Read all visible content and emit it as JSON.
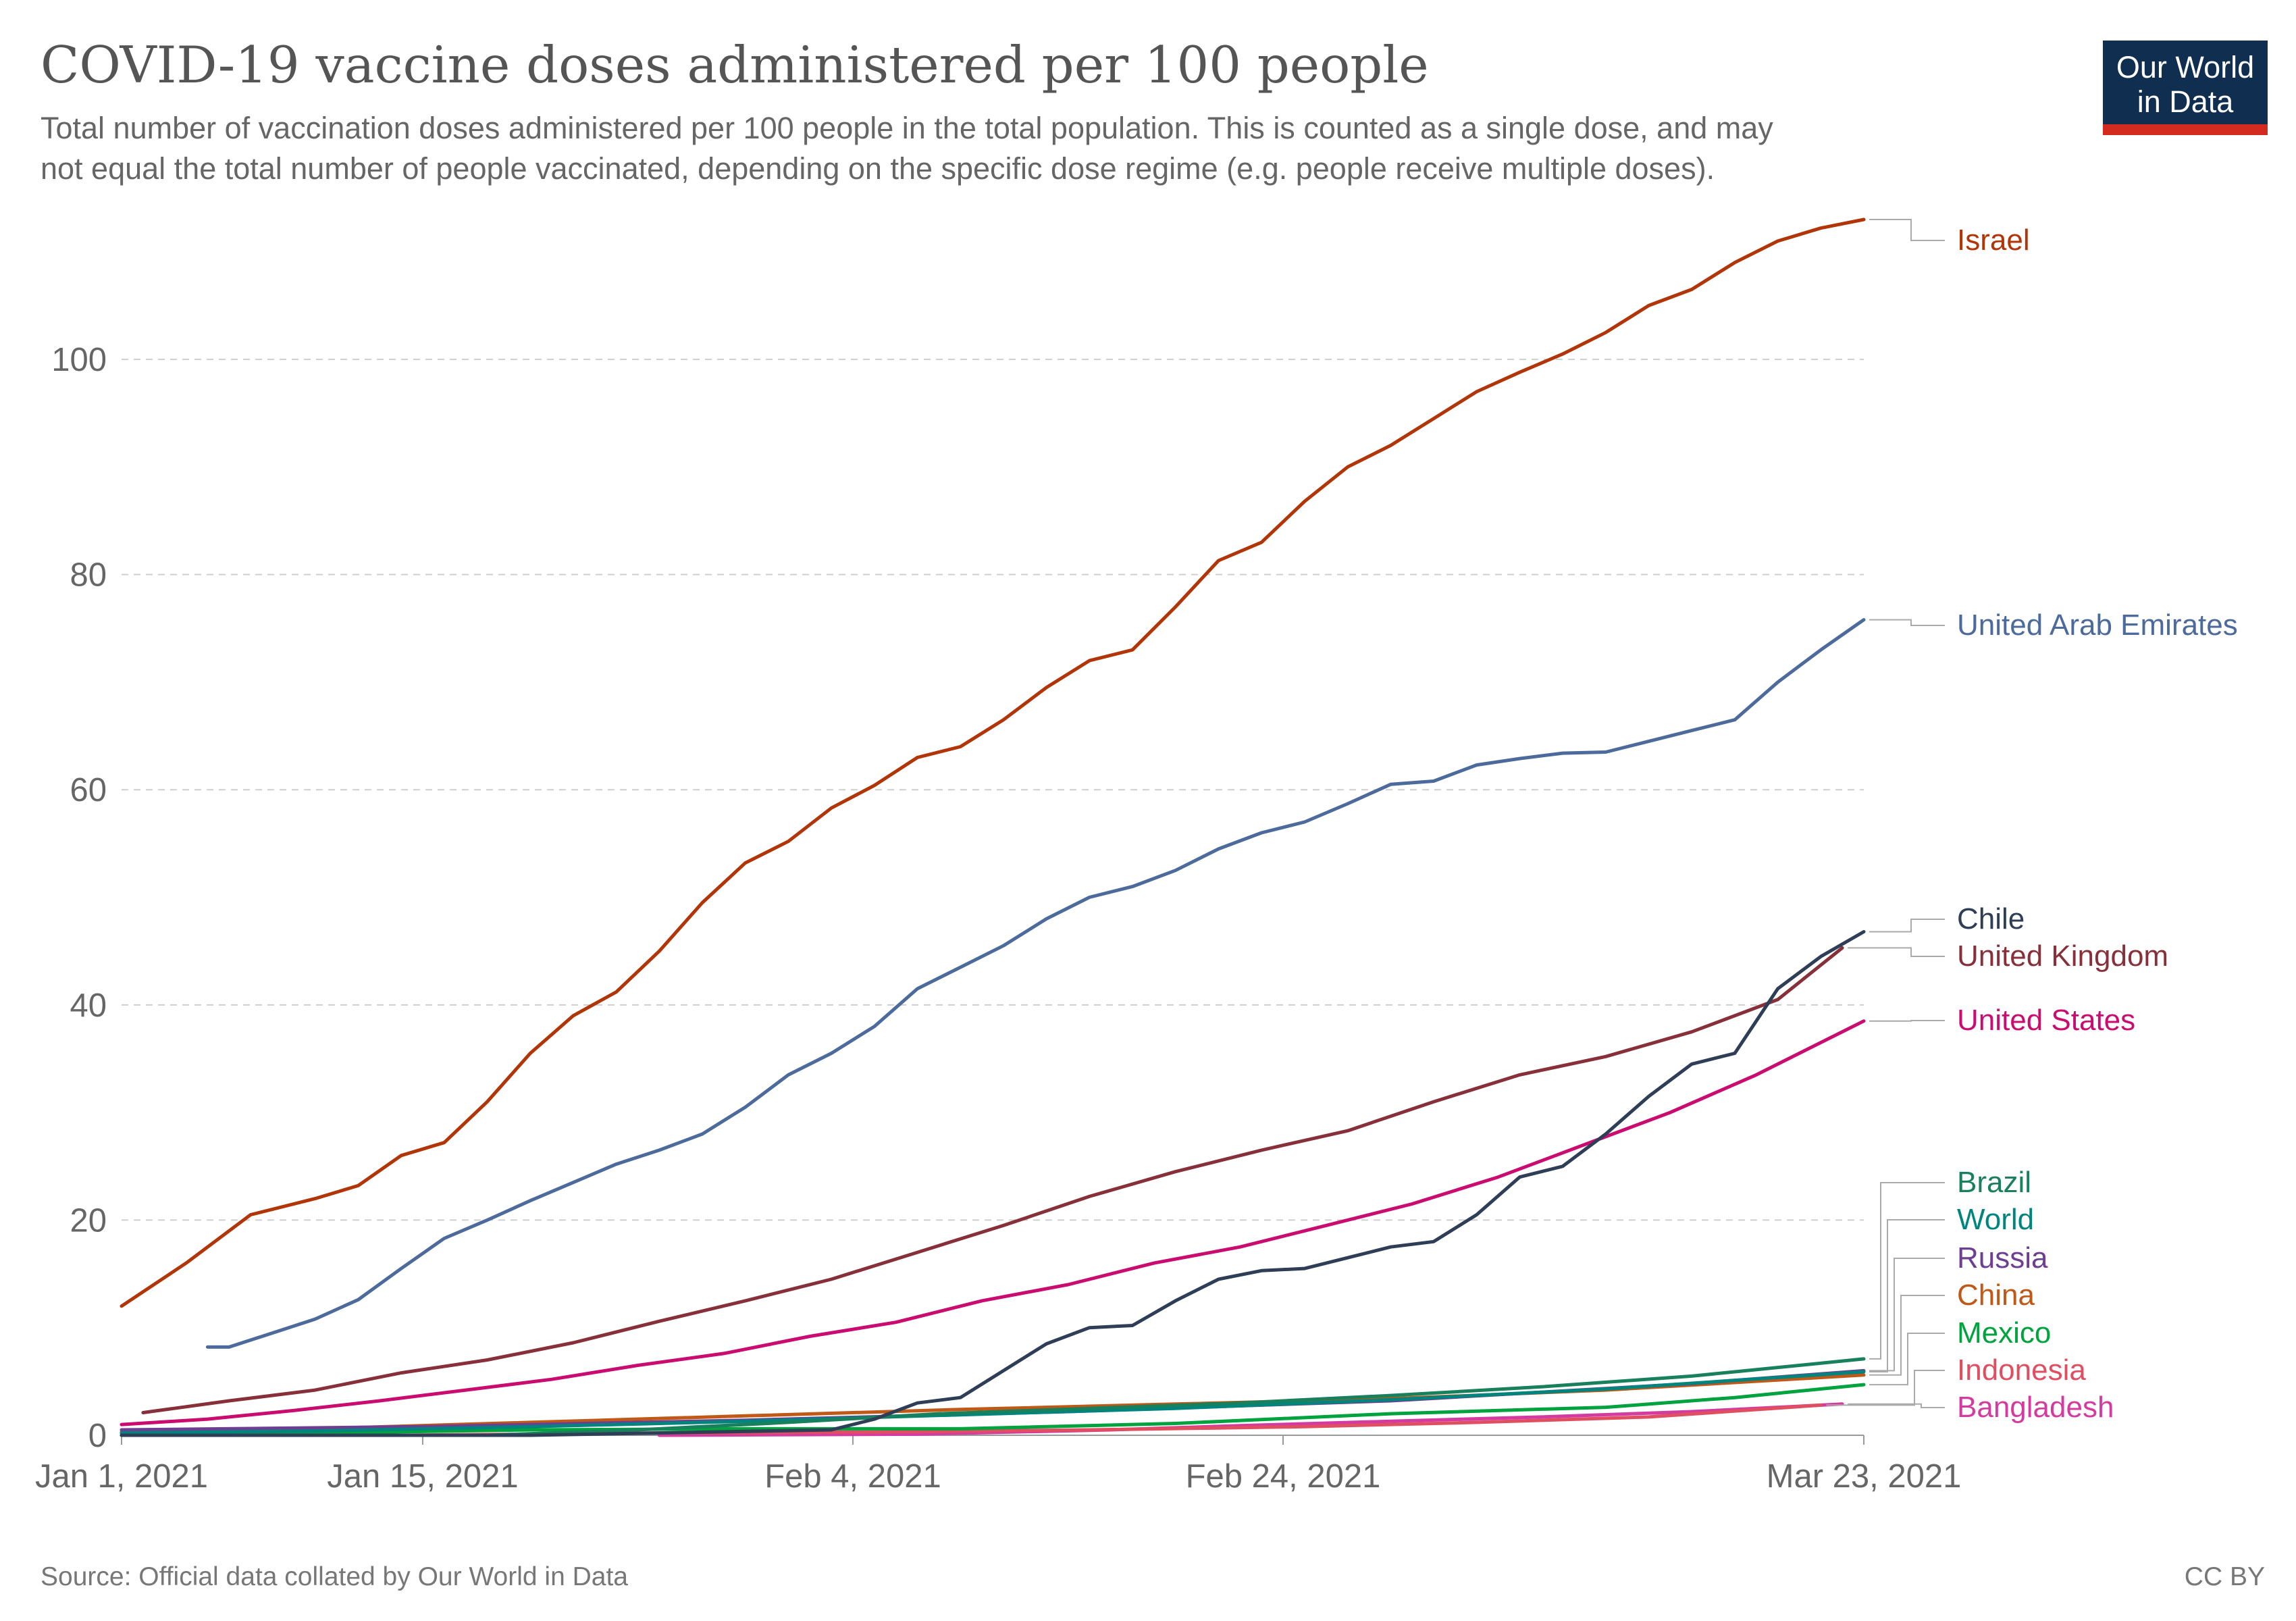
{
  "header": {
    "title": "COVID-19 vaccine doses administered per 100 people",
    "subtitle_line1": "Total number of vaccination doses administered per 100 people in the total population. This is counted as a single dose, and may",
    "subtitle_line2": "not equal the total number of people vaccinated, depending on the specific dose regime (e.g. people receive multiple doses)."
  },
  "logo": {
    "line1": "Our World",
    "line2": "in Data",
    "bg_color": "#102e4f",
    "accent_color": "#d42b21"
  },
  "footer": {
    "source": "Source: Official data collated by Our World in Data",
    "license": "CC BY"
  },
  "chart_data": {
    "type": "line",
    "title": "COVID-19 vaccine doses administered per 100 people",
    "xlabel": "",
    "ylabel": "",
    "x_start": "2021-01-01",
    "x_end": "2021-03-23",
    "x_ticks": [
      {
        "date": "2021-01-01",
        "label": "Jan 1, 2021"
      },
      {
        "date": "2021-01-15",
        "label": "Jan 15, 2021"
      },
      {
        "date": "2021-02-04",
        "label": "Feb 4, 2021"
      },
      {
        "date": "2021-02-24",
        "label": "Feb 24, 2021"
      },
      {
        "date": "2021-03-23",
        "label": "Mar 23, 2021"
      }
    ],
    "ylim": [
      0,
      113
    ],
    "y_ticks": [
      0,
      20,
      40,
      60,
      80,
      100
    ],
    "grid": "horizontal dashed",
    "legend": "labels at right end of lines",
    "series": [
      {
        "name": "Israel",
        "color": "#b13507",
        "points": [
          [
            "2021-01-01",
            12.0
          ],
          [
            "2021-01-04",
            16.0
          ],
          [
            "2021-01-07",
            20.5
          ],
          [
            "2021-01-10",
            22.0
          ],
          [
            "2021-01-12",
            23.2
          ],
          [
            "2021-01-14",
            26.0
          ],
          [
            "2021-01-16",
            27.2
          ],
          [
            "2021-01-18",
            31.0
          ],
          [
            "2021-01-20",
            35.5
          ],
          [
            "2021-01-22",
            39.0
          ],
          [
            "2021-01-24",
            41.2
          ],
          [
            "2021-01-26",
            45.0
          ],
          [
            "2021-01-28",
            49.5
          ],
          [
            "2021-01-30",
            53.2
          ],
          [
            "2021-02-01",
            55.2
          ],
          [
            "2021-02-03",
            58.3
          ],
          [
            "2021-02-05",
            60.4
          ],
          [
            "2021-02-07",
            63.0
          ],
          [
            "2021-02-09",
            64.0
          ],
          [
            "2021-02-11",
            66.5
          ],
          [
            "2021-02-13",
            69.5
          ],
          [
            "2021-02-15",
            72.0
          ],
          [
            "2021-02-17",
            73.0
          ],
          [
            "2021-02-19",
            77.0
          ],
          [
            "2021-02-21",
            81.3
          ],
          [
            "2021-02-23",
            83.0
          ],
          [
            "2021-02-25",
            86.8
          ],
          [
            "2021-02-27",
            90.0
          ],
          [
            "2021-03-01",
            92.0
          ],
          [
            "2021-03-03",
            94.5
          ],
          [
            "2021-03-05",
            97.0
          ],
          [
            "2021-03-07",
            98.8
          ],
          [
            "2021-03-09",
            100.5
          ],
          [
            "2021-03-11",
            102.5
          ],
          [
            "2021-03-13",
            105.0
          ],
          [
            "2021-03-15",
            106.5
          ],
          [
            "2021-03-17",
            109.0
          ],
          [
            "2021-03-19",
            111.0
          ],
          [
            "2021-03-21",
            112.2
          ],
          [
            "2021-03-23",
            113.0
          ]
        ]
      },
      {
        "name": "United Arab Emirates",
        "color": "#4c6a9c",
        "points": [
          [
            "2021-01-05",
            8.2
          ],
          [
            "2021-01-06",
            8.2
          ],
          [
            "2021-01-08",
            9.5
          ],
          [
            "2021-01-10",
            10.8
          ],
          [
            "2021-01-12",
            12.6
          ],
          [
            "2021-01-14",
            15.5
          ],
          [
            "2021-01-16",
            18.3
          ],
          [
            "2021-01-18",
            20.0
          ],
          [
            "2021-01-20",
            21.8
          ],
          [
            "2021-01-22",
            23.5
          ],
          [
            "2021-01-24",
            25.2
          ],
          [
            "2021-01-26",
            26.5
          ],
          [
            "2021-01-28",
            28.0
          ],
          [
            "2021-01-30",
            30.5
          ],
          [
            "2021-02-01",
            33.5
          ],
          [
            "2021-02-03",
            35.5
          ],
          [
            "2021-02-05",
            38.0
          ],
          [
            "2021-02-07",
            41.5
          ],
          [
            "2021-02-09",
            43.5
          ],
          [
            "2021-02-11",
            45.5
          ],
          [
            "2021-02-13",
            48.0
          ],
          [
            "2021-02-15",
            50.0
          ],
          [
            "2021-02-17",
            51.0
          ],
          [
            "2021-02-19",
            52.5
          ],
          [
            "2021-02-21",
            54.5
          ],
          [
            "2021-02-23",
            56.0
          ],
          [
            "2021-02-25",
            57.0
          ],
          [
            "2021-02-27",
            58.7
          ],
          [
            "2021-03-01",
            60.5
          ],
          [
            "2021-03-03",
            60.8
          ],
          [
            "2021-03-05",
            62.3
          ],
          [
            "2021-03-07",
            62.9
          ],
          [
            "2021-03-09",
            63.4
          ],
          [
            "2021-03-11",
            63.5
          ],
          [
            "2021-03-13",
            64.5
          ],
          [
            "2021-03-15",
            65.5
          ],
          [
            "2021-03-17",
            66.5
          ],
          [
            "2021-03-19",
            70.0
          ],
          [
            "2021-03-21",
            73.0
          ],
          [
            "2021-03-23",
            75.8
          ]
        ]
      },
      {
        "name": "Chile",
        "color": "#2e3e57",
        "points": [
          [
            "2021-01-01",
            0.0
          ],
          [
            "2021-01-20",
            0.0
          ],
          [
            "2021-02-03",
            0.5
          ],
          [
            "2021-02-05",
            1.5
          ],
          [
            "2021-02-07",
            3.0
          ],
          [
            "2021-02-09",
            3.5
          ],
          [
            "2021-02-11",
            6.0
          ],
          [
            "2021-02-13",
            8.5
          ],
          [
            "2021-02-15",
            10.0
          ],
          [
            "2021-02-17",
            10.2
          ],
          [
            "2021-02-19",
            12.5
          ],
          [
            "2021-02-21",
            14.5
          ],
          [
            "2021-02-23",
            15.3
          ],
          [
            "2021-02-25",
            15.5
          ],
          [
            "2021-02-27",
            16.5
          ],
          [
            "2021-03-01",
            17.5
          ],
          [
            "2021-03-03",
            18.0
          ],
          [
            "2021-03-05",
            20.5
          ],
          [
            "2021-03-07",
            24.0
          ],
          [
            "2021-03-09",
            25.0
          ],
          [
            "2021-03-11",
            28.0
          ],
          [
            "2021-03-13",
            31.5
          ],
          [
            "2021-03-15",
            34.5
          ],
          [
            "2021-03-17",
            35.5
          ],
          [
            "2021-03-19",
            41.5
          ],
          [
            "2021-03-21",
            44.5
          ],
          [
            "2021-03-23",
            46.8
          ]
        ]
      },
      {
        "name": "United Kingdom",
        "color": "#883039",
        "points": [
          [
            "2021-01-02",
            2.1
          ],
          [
            "2021-01-06",
            3.2
          ],
          [
            "2021-01-10",
            4.2
          ],
          [
            "2021-01-14",
            5.8
          ],
          [
            "2021-01-18",
            7.0
          ],
          [
            "2021-01-22",
            8.6
          ],
          [
            "2021-01-26",
            10.6
          ],
          [
            "2021-01-30",
            12.5
          ],
          [
            "2021-02-03",
            14.5
          ],
          [
            "2021-02-07",
            17.0
          ],
          [
            "2021-02-11",
            19.5
          ],
          [
            "2021-02-15",
            22.2
          ],
          [
            "2021-02-19",
            24.5
          ],
          [
            "2021-02-23",
            26.5
          ],
          [
            "2021-02-27",
            28.3
          ],
          [
            "2021-03-03",
            31.0
          ],
          [
            "2021-03-07",
            33.5
          ],
          [
            "2021-03-11",
            35.2
          ],
          [
            "2021-03-15",
            37.5
          ],
          [
            "2021-03-19",
            40.5
          ],
          [
            "2021-03-22",
            45.3
          ]
        ]
      },
      {
        "name": "United States",
        "color": "#ca0b6f",
        "points": [
          [
            "2021-01-01",
            1.0
          ],
          [
            "2021-01-05",
            1.5
          ],
          [
            "2021-01-09",
            2.3
          ],
          [
            "2021-01-13",
            3.2
          ],
          [
            "2021-01-17",
            4.2
          ],
          [
            "2021-01-21",
            5.2
          ],
          [
            "2021-01-25",
            6.5
          ],
          [
            "2021-01-29",
            7.6
          ],
          [
            "2021-02-02",
            9.2
          ],
          [
            "2021-02-06",
            10.5
          ],
          [
            "2021-02-10",
            12.5
          ],
          [
            "2021-02-14",
            14.0
          ],
          [
            "2021-02-18",
            16.0
          ],
          [
            "2021-02-22",
            17.5
          ],
          [
            "2021-02-26",
            19.5
          ],
          [
            "2021-03-02",
            21.5
          ],
          [
            "2021-03-06",
            24.0
          ],
          [
            "2021-03-10",
            27.0
          ],
          [
            "2021-03-14",
            30.0
          ],
          [
            "2021-03-18",
            33.5
          ],
          [
            "2021-03-23",
            38.5
          ]
        ]
      },
      {
        "name": "Brazil",
        "color": "#18805c",
        "points": [
          [
            "2021-01-01",
            0.0
          ],
          [
            "2021-01-18",
            0.0
          ],
          [
            "2021-01-25",
            0.5
          ],
          [
            "2021-02-01",
            1.2
          ],
          [
            "2021-02-08",
            2.0
          ],
          [
            "2021-02-15",
            2.5
          ],
          [
            "2021-02-22",
            3.0
          ],
          [
            "2021-03-01",
            3.7
          ],
          [
            "2021-03-08",
            4.5
          ],
          [
            "2021-03-15",
            5.5
          ],
          [
            "2021-03-23",
            7.1
          ]
        ]
      },
      {
        "name": "World",
        "color": "#00847e",
        "points": [
          [
            "2021-01-01",
            0.2
          ],
          [
            "2021-01-10",
            0.4
          ],
          [
            "2021-01-20",
            0.8
          ],
          [
            "2021-01-30",
            1.3
          ],
          [
            "2021-02-09",
            1.9
          ],
          [
            "2021-02-19",
            2.5
          ],
          [
            "2021-03-01",
            3.3
          ],
          [
            "2021-03-11",
            4.3
          ],
          [
            "2021-03-23",
            5.9
          ]
        ]
      },
      {
        "name": "Russia",
        "color": "#6d3e91",
        "points": [
          [
            "2021-01-01",
            0.5
          ],
          [
            "2021-01-15",
            0.8
          ],
          [
            "2021-01-30",
            1.4
          ],
          [
            "2021-02-14",
            2.2
          ],
          [
            "2021-03-01",
            3.2
          ],
          [
            "2021-03-15",
            4.8
          ],
          [
            "2021-03-23",
            6.0
          ]
        ]
      },
      {
        "name": "China",
        "color": "#c05917",
        "points": [
          [
            "2021-01-01",
            0.3
          ],
          [
            "2021-01-10",
            0.6
          ],
          [
            "2021-01-20",
            1.2
          ],
          [
            "2021-01-30",
            1.8
          ],
          [
            "2021-02-09",
            2.4
          ],
          [
            "2021-02-19",
            2.9
          ],
          [
            "2021-03-01",
            3.4
          ],
          [
            "2021-03-11",
            4.2
          ],
          [
            "2021-03-23",
            5.6
          ]
        ]
      },
      {
        "name": "Mexico",
        "color": "#00a33d",
        "points": [
          [
            "2021-01-01",
            0.0
          ],
          [
            "2021-01-10",
            0.2
          ],
          [
            "2021-01-20",
            0.5
          ],
          [
            "2021-01-30",
            0.6
          ],
          [
            "2021-02-09",
            0.6
          ],
          [
            "2021-02-19",
            1.1
          ],
          [
            "2021-03-01",
            2.0
          ],
          [
            "2021-03-11",
            2.6
          ],
          [
            "2021-03-17",
            3.5
          ],
          [
            "2021-03-23",
            4.7
          ]
        ]
      },
      {
        "name": "Indonesia",
        "color": "#e04e62",
        "points": [
          [
            "2021-01-14",
            0.0
          ],
          [
            "2021-01-25",
            0.2
          ],
          [
            "2021-02-05",
            0.3
          ],
          [
            "2021-02-15",
            0.5
          ],
          [
            "2021-02-25",
            0.8
          ],
          [
            "2021-03-05",
            1.2
          ],
          [
            "2021-03-13",
            1.7
          ],
          [
            "2021-03-21",
            2.8
          ]
        ]
      },
      {
        "name": "Bangladesh",
        "color": "#d43ba1",
        "points": [
          [
            "2021-01-26",
            0.0
          ],
          [
            "2021-02-07",
            0.1
          ],
          [
            "2021-02-16",
            0.5
          ],
          [
            "2021-02-22",
            0.9
          ],
          [
            "2021-03-01",
            1.3
          ],
          [
            "2021-03-08",
            1.7
          ],
          [
            "2021-03-15",
            2.2
          ],
          [
            "2021-03-21",
            2.8
          ],
          [
            "2021-03-22",
            2.9
          ]
        ]
      }
    ]
  }
}
